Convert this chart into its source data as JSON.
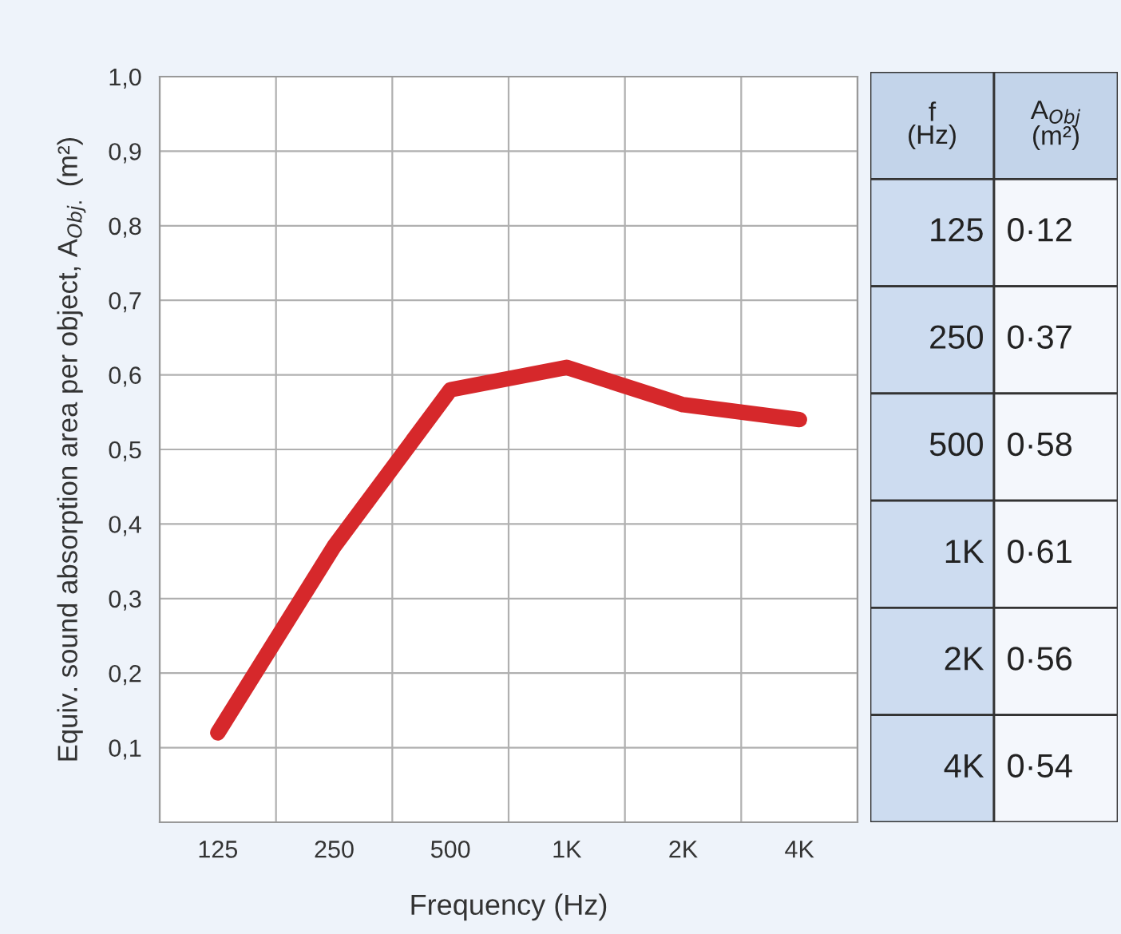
{
  "chart_data": {
    "type": "line",
    "xlabel": "Frequency (Hz)",
    "ylabel": "Equiv. sound absorption area per object, A$_{Obj.}$ (m²)",
    "categories": [
      "125",
      "250",
      "500",
      "1K",
      "2K",
      "4K"
    ],
    "series": [
      {
        "color": "#d6282b",
        "values": [
          0.12,
          0.37,
          0.58,
          0.61,
          0.56,
          0.54
        ]
      }
    ],
    "ylim": [
      0,
      1.0
    ],
    "yticks": [
      {
        "value": 0.1,
        "label": "0,1"
      },
      {
        "value": 0.2,
        "label": "0,2"
      },
      {
        "value": 0.3,
        "label": "0,3"
      },
      {
        "value": 0.4,
        "label": "0,4"
      },
      {
        "value": 0.5,
        "label": "0,5"
      },
      {
        "value": 0.6,
        "label": "0,6"
      },
      {
        "value": 0.7,
        "label": "0,7"
      },
      {
        "value": 0.8,
        "label": "0,8"
      },
      {
        "value": 0.9,
        "label": "0,9"
      },
      {
        "value": 1.0,
        "label": "1,0"
      }
    ],
    "annotations": [
      "f\n(Hz)",
      "A$_{Obj}$\n(m²)",
      "0·12",
      "0·37",
      "0·58",
      "0·61",
      "0·56",
      "0·54"
    ],
    "grid": true,
    "marker": "none",
    "line_style": "solid",
    "legend": false
  }
}
